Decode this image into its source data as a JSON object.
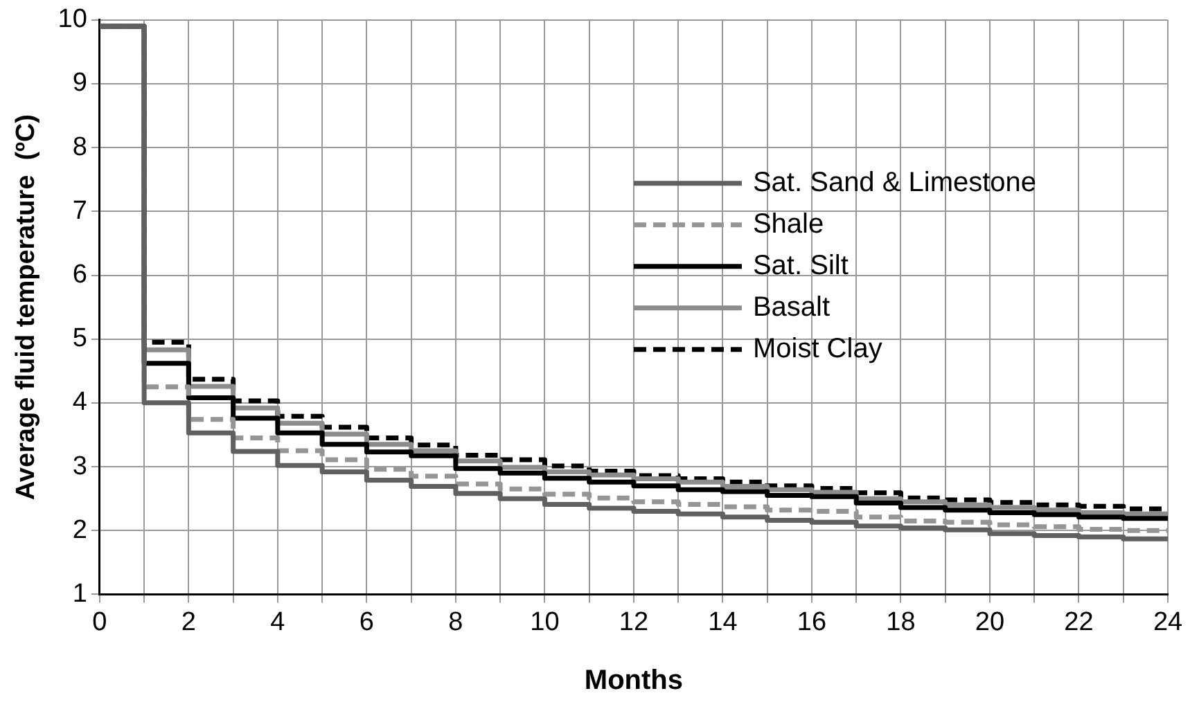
{
  "chart_data": {
    "type": "step",
    "xlabel": "Months",
    "ylabel": "Average fluid temperature  (ºC)",
    "x": [
      0,
      1,
      2,
      3,
      4,
      5,
      6,
      7,
      8,
      9,
      10,
      11,
      12,
      13,
      14,
      15,
      16,
      17,
      18,
      19,
      20,
      21,
      22,
      23,
      24
    ],
    "series": [
      {
        "name": "Sat. Sand & Limestone",
        "color": "#606060",
        "line_style": "solid",
        "values": [
          9.9,
          4.0,
          3.53,
          3.24,
          3.02,
          2.92,
          2.79,
          2.69,
          2.58,
          2.5,
          2.41,
          2.35,
          2.3,
          2.26,
          2.21,
          2.16,
          2.13,
          2.07,
          2.04,
          2.01,
          1.95,
          1.92,
          1.9,
          1.87,
          1.87
        ]
      },
      {
        "name": "Shale",
        "color": "#959595",
        "line_style": "dashed",
        "values": [
          9.9,
          4.25,
          3.74,
          3.45,
          3.25,
          3.11,
          2.96,
          2.85,
          2.73,
          2.65,
          2.57,
          2.51,
          2.45,
          2.41,
          2.37,
          2.32,
          2.3,
          2.21,
          2.15,
          2.13,
          2.09,
          2.06,
          2.02,
          2.0,
          2.0
        ]
      },
      {
        "name": "Sat. Silt",
        "color": "#000000",
        "line_style": "solid",
        "values": [
          9.9,
          4.62,
          4.08,
          3.76,
          3.53,
          3.35,
          3.23,
          3.17,
          2.97,
          2.9,
          2.82,
          2.76,
          2.7,
          2.64,
          2.61,
          2.55,
          2.53,
          2.43,
          2.36,
          2.32,
          2.28,
          2.25,
          2.21,
          2.19,
          2.19
        ]
      },
      {
        "name": "Basalt",
        "color": "#8c8c8c",
        "line_style": "solid",
        "values": [
          9.9,
          4.83,
          4.26,
          3.92,
          3.68,
          3.51,
          3.35,
          3.25,
          3.09,
          2.99,
          2.92,
          2.87,
          2.81,
          2.76,
          2.69,
          2.64,
          2.6,
          2.5,
          2.45,
          2.4,
          2.36,
          2.32,
          2.28,
          2.26,
          2.26
        ]
      },
      {
        "name": "Moist Clay",
        "color": "#000000",
        "line_style": "dashed",
        "values": [
          9.9,
          4.95,
          4.37,
          4.03,
          3.79,
          3.62,
          3.45,
          3.34,
          3.18,
          3.11,
          3.01,
          2.93,
          2.86,
          2.81,
          2.76,
          2.7,
          2.66,
          2.59,
          2.51,
          2.48,
          2.44,
          2.4,
          2.38,
          2.34,
          2.34
        ]
      }
    ],
    "xlim": [
      0,
      24
    ],
    "xticks": [
      0,
      {
        "value": 1,
        "label": null
      },
      2,
      {
        "value": 3,
        "label": null
      },
      4,
      {
        "value": 5,
        "label": null
      },
      6,
      {
        "value": 7,
        "label": null
      },
      8,
      {
        "value": 9,
        "label": null
      },
      10,
      {
        "value": 11,
        "label": null
      },
      12,
      {
        "value": 13,
        "label": null
      },
      14,
      {
        "value": 15,
        "label": null
      },
      16,
      {
        "value": 17,
        "label": null
      },
      18,
      {
        "value": 19,
        "label": null
      },
      20,
      {
        "value": 21,
        "label": null
      },
      22,
      {
        "value": 23,
        "label": null
      },
      24
    ],
    "ylim": [
      1,
      10
    ],
    "yticks": [
      1,
      2,
      3,
      4,
      5,
      6,
      7,
      8,
      9,
      10
    ],
    "grid": true,
    "legend": "right",
    "marker": "none"
  }
}
